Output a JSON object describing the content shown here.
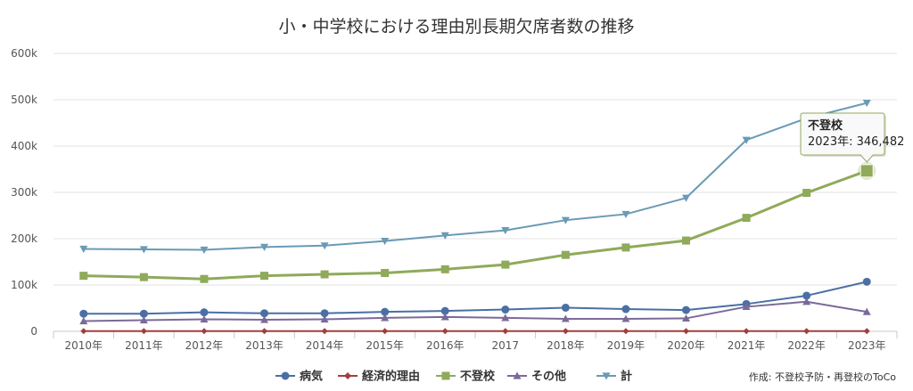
{
  "chart_data": {
    "type": "line",
    "title": "小・中学校における理由別長期欠席者数の推移",
    "categories": [
      "2010年",
      "2011年",
      "2012年",
      "2013年",
      "2014年",
      "2015年",
      "2016年",
      "2017",
      "2018年",
      "2019年",
      "2020年",
      "2021年",
      "2022年",
      "2023年"
    ],
    "ylim": [
      0,
      600000
    ],
    "yticks": [
      0,
      100000,
      200000,
      300000,
      400000,
      500000,
      600000
    ],
    "ytick_labels": [
      "0",
      "100k",
      "200k",
      "300k",
      "400k",
      "500k",
      "600k"
    ],
    "grid": true,
    "legend_position": "bottom-center",
    "series": [
      {
        "name": "病気",
        "color": "#4a6fa5",
        "marker": "circle",
        "values": [
          38000,
          38000,
          41000,
          39000,
          39000,
          42000,
          44000,
          47000,
          51000,
          48000,
          46000,
          59000,
          77000,
          107000
        ]
      },
      {
        "name": "経済的理由",
        "color": "#a33e3e",
        "marker": "diamond",
        "values": [
          500,
          500,
          500,
          500,
          500,
          500,
          500,
          500,
          500,
          500,
          500,
          500,
          500,
          500
        ]
      },
      {
        "name": "不登校",
        "color": "#8faa5a",
        "marker": "square",
        "values": [
          120000,
          117000,
          113000,
          120000,
          123000,
          126000,
          134000,
          144000,
          165000,
          181000,
          196000,
          245000,
          299000,
          346482
        ]
      },
      {
        "name": "その他",
        "color": "#7a6a9a",
        "marker": "triangle-up",
        "values": [
          22000,
          24000,
          26000,
          25000,
          26000,
          29000,
          31000,
          29000,
          27000,
          27000,
          28000,
          53000,
          64000,
          42000
        ]
      },
      {
        "name": "計",
        "color": "#6a9ab5",
        "marker": "triangle-down",
        "values": [
          178000,
          177000,
          176000,
          182000,
          185000,
          195000,
          207000,
          218000,
          240000,
          253000,
          288000,
          413000,
          460000,
          493000
        ]
      }
    ],
    "tooltip": {
      "series_index": 2,
      "point_index": 13,
      "title": "不登校",
      "text": "2023年: 346,482"
    },
    "credit": "作成: 不登校予防・再登校のToCo"
  }
}
